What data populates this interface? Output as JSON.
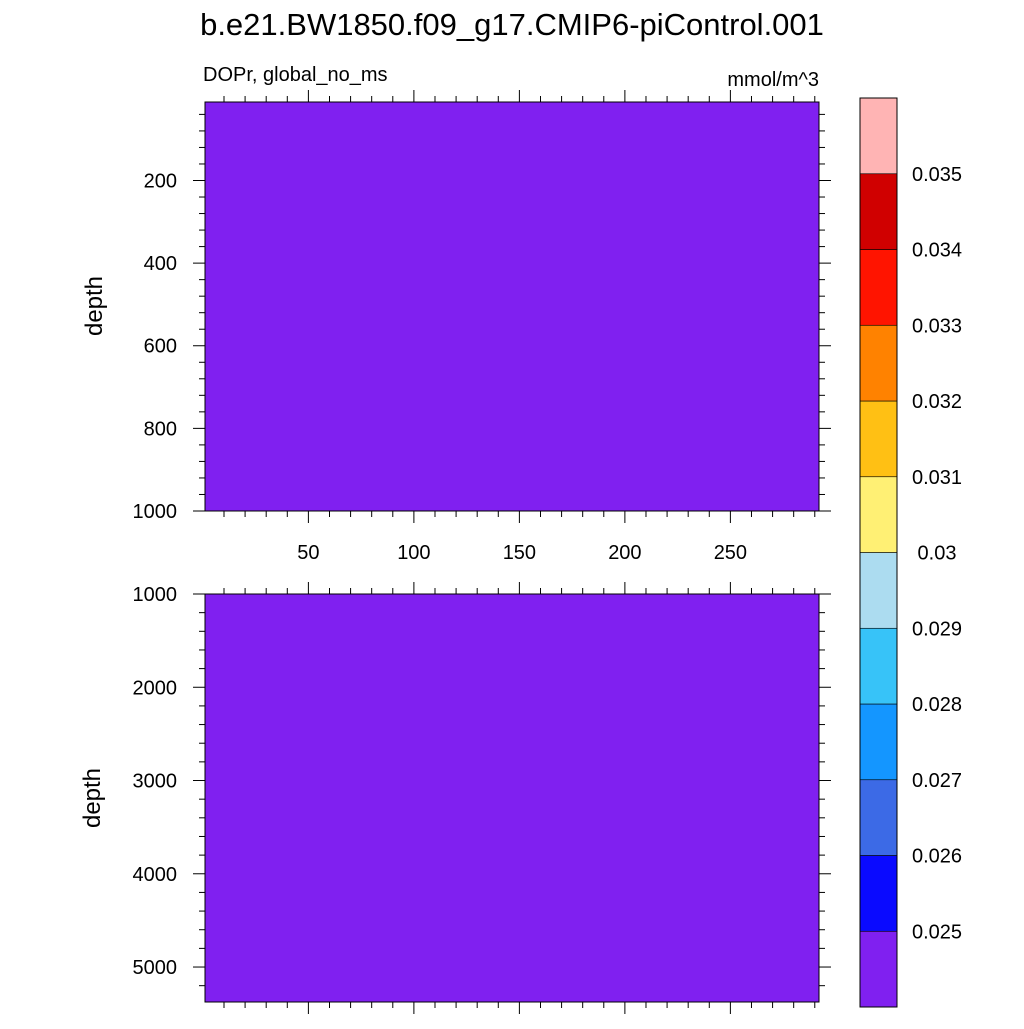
{
  "title": "b.e21.BW1850.f09_g17.CMIP6-piControl.001",
  "chart_data": {
    "type": "heatmap",
    "variable_label": "DOPr, global_no_ms",
    "units": "mmol/m^3",
    "fill_color": "#8020f0",
    "panels": [
      {
        "name": "upper",
        "xlim": [
          1,
          292
        ],
        "ylim": [
          10,
          1000
        ],
        "y_inverted": true,
        "ylabel": "depth",
        "xticks": [
          50,
          100,
          150,
          200,
          250
        ],
        "xtick_labels": [
          "50",
          "100",
          "150",
          "200",
          "250"
        ],
        "yticks": [
          200,
          400,
          600,
          800,
          1000
        ],
        "ytick_labels": [
          "200",
          "400",
          "600",
          "800",
          "1000"
        ],
        "field_value": "below 0.025"
      },
      {
        "name": "lower",
        "xlim": [
          1,
          292
        ],
        "ylim": [
          1000,
          5375
        ],
        "y_inverted": true,
        "ylabel": "depth",
        "xticks": [
          50,
          100,
          150,
          200,
          250
        ],
        "yticks": [
          1000,
          2000,
          3000,
          4000,
          5000
        ],
        "ytick_labels": [
          "1000",
          "2000",
          "3000",
          "4000",
          "5000"
        ],
        "field_value": "below 0.025"
      }
    ],
    "colorbar": {
      "levels": [
        "0.025",
        "0.026",
        "0.027",
        "0.028",
        "0.029",
        "0.03",
        "0.031",
        "0.032",
        "0.033",
        "0.034",
        "0.035"
      ],
      "colors_bottom_to_top": [
        "#8020f0",
        "#0a0aff",
        "#3c6ae6",
        "#1496ff",
        "#37c3f8",
        "#acdcf0",
        "#fff074",
        "#ffc014",
        "#ff8200",
        "#ff1400",
        "#d00000",
        "#ffb4b4"
      ]
    }
  }
}
